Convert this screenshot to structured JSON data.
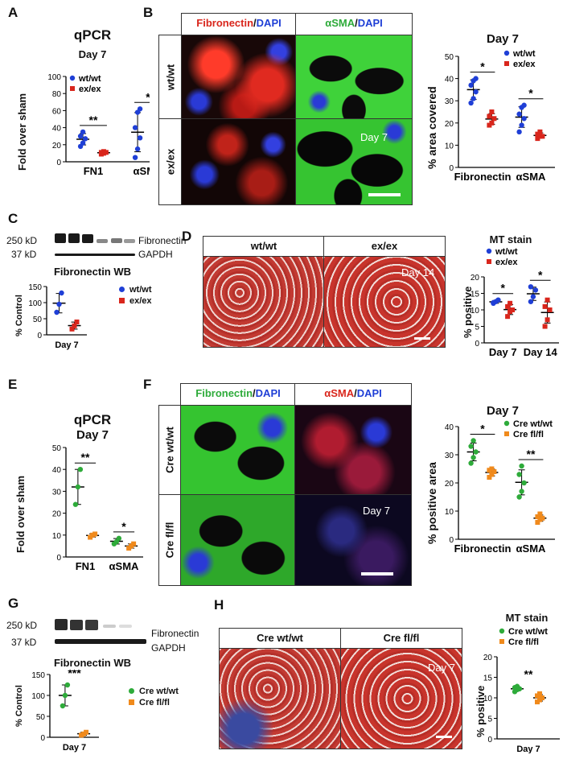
{
  "panels": {
    "A": {
      "letter": "A",
      "title": "qPCR",
      "subtitle": "Day 7",
      "ylabel": "Fold over sham",
      "legend": [
        "wt/wt",
        "ex/ex"
      ],
      "sig": [
        "**",
        "*"
      ],
      "chart_data": {
        "type": "scatter",
        "categories": [
          "FN1",
          "αSMA"
        ],
        "ylim": [
          0,
          100
        ],
        "yticks": [
          0,
          20,
          40,
          60,
          80,
          100
        ],
        "series": [
          {
            "name": "wt/wt",
            "color": "#1f3fd6",
            "values": [
              [
                18,
                22,
                27,
                30,
                35
              ],
              [
                5,
                15,
                28,
                40,
                58,
                62
              ]
            ]
          },
          {
            "name": "ex/ex",
            "color": "#d9261c",
            "values": [
              [
                9,
                10,
                11,
                11,
                12
              ],
              [
                5,
                8,
                12,
                15,
                20,
                25
              ]
            ]
          }
        ]
      }
    },
    "B": {
      "letter": "B",
      "col_headers": [
        [
          "Fibronectin",
          "/",
          "DAPI"
        ],
        [
          "αSMA",
          "/",
          "DAPI"
        ]
      ],
      "row_headers": [
        "wt/wt",
        "ex/ex"
      ],
      "day_label": "Day 7",
      "chart_title": "Day 7",
      "ylabel": "% area covered",
      "legend": [
        "wt/wt",
        "ex/ex"
      ],
      "sig": [
        "*",
        "*"
      ],
      "chart_data": {
        "type": "scatter",
        "categories": [
          "Fibronectin",
          "αSMA"
        ],
        "ylim": [
          0,
          50
        ],
        "yticks": [
          0,
          10,
          20,
          30,
          40,
          50
        ],
        "series": [
          {
            "name": "wt/wt",
            "color": "#1f3fd6",
            "values": [
              [
                29,
                31,
                34,
                37,
                39,
                40
              ],
              [
                16,
                19,
                22,
                24,
                27,
                28
              ]
            ]
          },
          {
            "name": "ex/ex",
            "color": "#d9261c",
            "values": [
              [
                19,
                20,
                22,
                23,
                25
              ],
              [
                13,
                14,
                14,
                15,
                16
              ]
            ]
          }
        ]
      }
    },
    "C": {
      "letter": "C",
      "blot_labels": [
        "250 kD",
        "37 kD"
      ],
      "band_labels": [
        "Fibronectin",
        "GAPDH"
      ],
      "title": "Fibronectin WB",
      "ylabel": "% Control",
      "legend": [
        "wt/wt",
        "ex/ex"
      ],
      "sig": [
        "*"
      ],
      "xlabel": "Day 7",
      "chart_data": {
        "type": "scatter",
        "categories": [
          "Day 7"
        ],
        "ylim": [
          0,
          150
        ],
        "yticks": [
          0,
          50,
          100,
          150
        ],
        "series": [
          {
            "name": "wt/wt",
            "color": "#1f3fd6",
            "values": [
              [
                70,
                95,
                130
              ]
            ]
          },
          {
            "name": "ex/ex",
            "color": "#d9261c",
            "values": [
              [
                18,
                28,
                40
              ]
            ]
          }
        ]
      }
    },
    "D": {
      "letter": "D",
      "col_headers": [
        "wt/wt",
        "ex/ex"
      ],
      "day_label": "Day 14",
      "chart_title": "MT stain",
      "ylabel": "% positive",
      "legend": [
        "wt/wt",
        "ex/ex"
      ],
      "sig": [
        "*",
        "*"
      ],
      "chart_data": {
        "type": "scatter",
        "categories": [
          "Day 7",
          "Day 14"
        ],
        "ylim": [
          0,
          20
        ],
        "yticks": [
          0,
          5,
          10,
          15,
          20
        ],
        "series": [
          {
            "name": "wt/wt",
            "color": "#1f3fd6",
            "values": [
              [
                12,
                12.5,
                13,
                12.2
              ],
              [
                12.5,
                14,
                16,
                17
              ]
            ]
          },
          {
            "name": "ex/ex",
            "color": "#d9261c",
            "values": [
              [
                8,
                9.5,
                10,
                11,
                12
              ],
              [
                5,
                7,
                10,
                11,
                13
              ]
            ]
          }
        ]
      }
    },
    "E": {
      "letter": "E",
      "title": "qPCR",
      "subtitle": "Day 7",
      "ylabel": "Fold over sham",
      "sig": [
        "**",
        "*"
      ],
      "chart_data": {
        "type": "scatter",
        "categories": [
          "FN1",
          "αSMA"
        ],
        "ylim": [
          0,
          50
        ],
        "yticks": [
          0,
          10,
          20,
          30,
          40,
          50
        ],
        "series": [
          {
            "name": "Cre wt/wt",
            "color": "#2eab3a",
            "values": [
              [
                24,
                32,
                40
              ],
              [
                6,
                7,
                8.5
              ]
            ]
          },
          {
            "name": "Cre fl/fl",
            "color": "#f08a1c",
            "values": [
              [
                9,
                10,
                10.5
              ],
              [
                4,
                5,
                6
              ]
            ]
          }
        ]
      }
    },
    "F": {
      "letter": "F",
      "col_headers": [
        [
          "Fibronectin",
          "/",
          "DAPI"
        ],
        [
          "αSMA",
          "/",
          "DAPI"
        ]
      ],
      "row_headers": [
        "Cre wt/wt",
        "Cre  fl/fl"
      ],
      "day_label": "Day 7",
      "chart_title": "Day 7",
      "ylabel": "% positive area",
      "legend": [
        "Cre wt/wt",
        "Cre fl/fl"
      ],
      "sig": [
        "*",
        "**"
      ],
      "chart_data": {
        "type": "scatter",
        "categories": [
          "Fibronectin",
          "αSMA"
        ],
        "ylim": [
          0,
          40
        ],
        "yticks": [
          0,
          10,
          20,
          30,
          40
        ],
        "series": [
          {
            "name": "Cre wt/wt",
            "color": "#2eab3a",
            "values": [
              [
                27,
                29,
                31,
                33,
                35
              ],
              [
                15,
                17,
                20,
                23,
                26
              ]
            ]
          },
          {
            "name": "Cre fl/fl",
            "color": "#f08a1c",
            "values": [
              [
                22,
                23,
                24,
                24.5,
                25
              ],
              [
                6,
                7,
                7.5,
                8,
                9
              ]
            ]
          }
        ]
      }
    },
    "G": {
      "letter": "G",
      "blot_labels": [
        "250 kD",
        "37 kD"
      ],
      "band_labels": [
        "Fibronectin",
        "GAPDH"
      ],
      "title": "Fibronectin WB",
      "ylabel": "% Control",
      "legend": [
        "Cre wt/wt",
        "Cre fl/fl"
      ],
      "sig": [
        "***"
      ],
      "xlabel": "Day 7",
      "chart_data": {
        "type": "scatter",
        "categories": [
          "Day 7"
        ],
        "ylim": [
          0,
          150
        ],
        "yticks": [
          0,
          50,
          100,
          150
        ],
        "series": [
          {
            "name": "Cre wt/wt",
            "color": "#2eab3a",
            "values": [
              [
                75,
                100,
                125
              ]
            ]
          },
          {
            "name": "Cre fl/fl",
            "color": "#f08a1c",
            "values": [
              [
                5,
                8,
                12
              ]
            ]
          }
        ]
      }
    },
    "H": {
      "letter": "H",
      "col_headers": [
        "Cre wt/wt",
        "Cre fl/fl"
      ],
      "day_label": "Day 7",
      "chart_title": "MT stain",
      "ylabel": "% positive",
      "legend": [
        "Cre wt/wt",
        "Cre fl/fl"
      ],
      "sig": [
        "**"
      ],
      "xlabel": "Day 7",
      "chart_data": {
        "type": "scatter",
        "categories": [
          "Day 7"
        ],
        "ylim": [
          0,
          20
        ],
        "yticks": [
          0,
          5,
          10,
          15,
          20
        ],
        "series": [
          {
            "name": "Cre wt/wt",
            "color": "#2eab3a",
            "values": [
              [
                11.5,
                12,
                12.2,
                12.5,
                12.8
              ]
            ]
          },
          {
            "name": "Cre fl/fl",
            "color": "#f08a1c",
            "values": [
              [
                9,
                9.5,
                10,
                10.5,
                11
              ]
            ]
          }
        ]
      }
    }
  }
}
